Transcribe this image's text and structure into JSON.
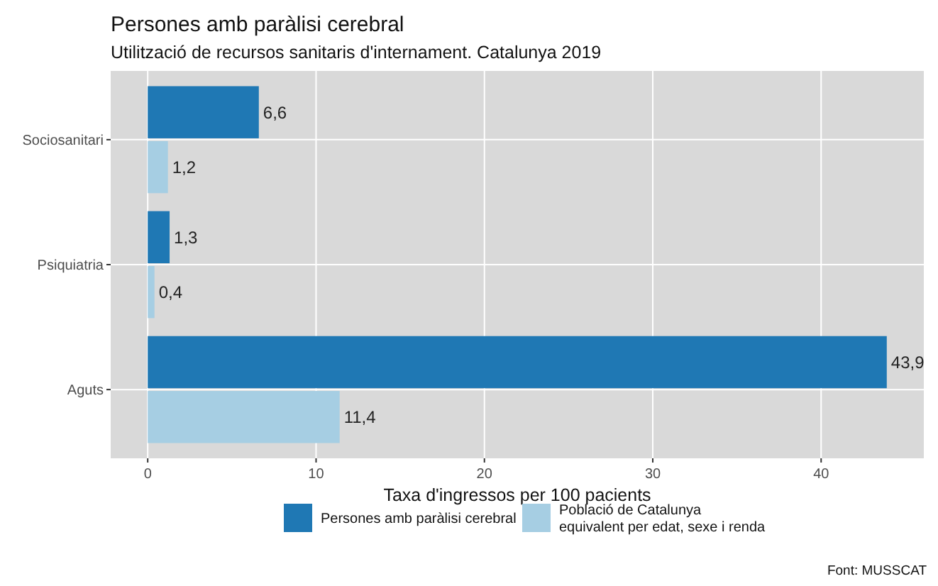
{
  "chart_data": {
    "type": "bar",
    "orientation": "horizontal",
    "title": "Persones amb paràlisi cerebral",
    "subtitle": "Utilització de recursos sanitaris d'internament. Catalunya 2019",
    "xlabel": "Taxa d'ingressos per 100 pacients",
    "categories": [
      "Sociosanitari",
      "Psiquiatria",
      "Aguts"
    ],
    "series": [
      {
        "name": "Persones amb paràlisi cerebral",
        "color": "#1f78b4",
        "values": [
          6.6,
          1.3,
          43.9
        ],
        "value_labels": [
          "6,6",
          "1,3",
          "43,9"
        ]
      },
      {
        "name": "Població de Catalunya\nequivalent per edat, sexe i renda",
        "color": "#a6cee3",
        "values": [
          1.2,
          0.4,
          11.4
        ],
        "value_labels": [
          "1,2",
          "0,4",
          "11,4"
        ]
      }
    ],
    "xlim": [
      -2.2,
      46.1
    ],
    "xticks": [
      0,
      10,
      20,
      30,
      40
    ],
    "grid": true,
    "legend": "bottom",
    "annotations": [
      "Font: MUSSCAT"
    ]
  }
}
